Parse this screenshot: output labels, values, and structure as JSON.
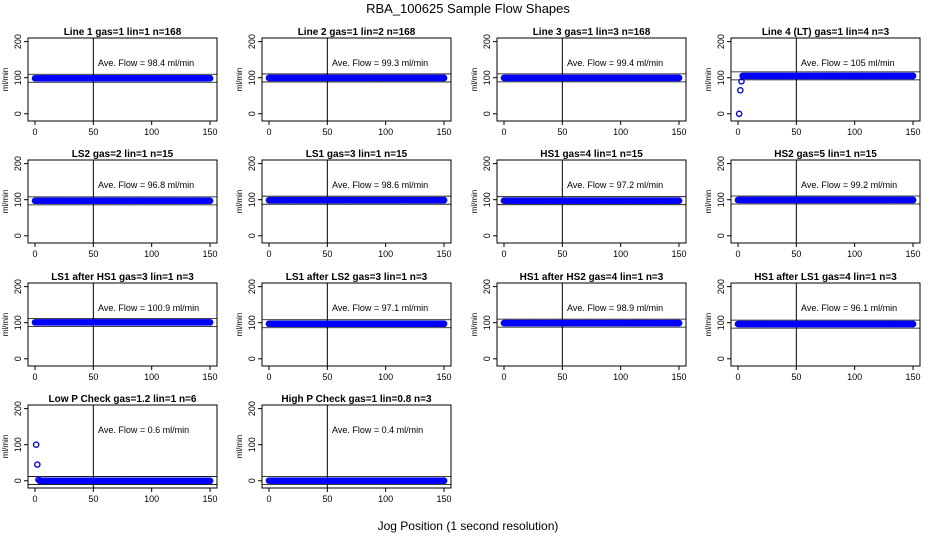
{
  "title": "RBA_100625  Sample Flow Shapes",
  "xlabel": "Jog Position (1 second resolution)",
  "ylabel": "ml/min",
  "x_ticks": [
    "0",
    "50",
    "100",
    "150"
  ],
  "y_ticks": [
    "0",
    "100",
    "200"
  ],
  "point_color": "#0000ff",
  "chart_data": [
    {
      "type": "scatter",
      "title": "Line 1 gas=1 lin=1 n=168",
      "annotation": "Ave. Flow =  98.4  ml/min",
      "hline": 98.4,
      "vline": 50,
      "xlim": [
        0,
        150
      ],
      "ylim": [
        -20,
        210
      ],
      "x": [
        0,
        1,
        2,
        150
      ],
      "y": [
        98.4,
        98.4,
        98.4,
        98.4
      ]
    },
    {
      "type": "scatter",
      "title": "Line 2 gas=1 lin=2 n=168",
      "annotation": "Ave. Flow =  99.3  ml/min",
      "hline": 99.3,
      "vline": 50,
      "xlim": [
        0,
        150
      ],
      "ylim": [
        -20,
        210
      ],
      "x": [
        0,
        1,
        2,
        150
      ],
      "y": [
        99.3,
        99.3,
        99.3,
        99.3
      ]
    },
    {
      "type": "scatter",
      "title": "Line 3 gas=1 lin=3 n=168",
      "annotation": "Ave. Flow =  99.4  ml/min",
      "hline": 99.4,
      "vline": 50,
      "xlim": [
        0,
        150
      ],
      "ylim": [
        -20,
        210
      ],
      "x": [
        0,
        1,
        2,
        150
      ],
      "y": [
        99.4,
        99.4,
        99.4,
        99.4
      ]
    },
    {
      "type": "scatter",
      "title": "Line 4 (LT) gas=1 lin=4 n=3",
      "annotation": "Ave. Flow =  105  ml/min",
      "hline": 105,
      "vline": 50,
      "xlim": [
        0,
        150
      ],
      "ylim": [
        -20,
        210
      ],
      "x": [
        1,
        2,
        3,
        4,
        150
      ],
      "y": [
        0,
        65,
        90,
        105,
        105
      ]
    },
    {
      "type": "scatter",
      "title": "LS2 gas=2 lin=1 n=15",
      "annotation": "Ave. Flow =  96.8  ml/min",
      "hline": 96.8,
      "vline": 50,
      "xlim": [
        0,
        150
      ],
      "ylim": [
        -20,
        210
      ],
      "x": [
        0,
        1,
        2,
        150
      ],
      "y": [
        96.8,
        96.8,
        96.8,
        96.8
      ]
    },
    {
      "type": "scatter",
      "title": "LS1 gas=3 lin=1 n=15",
      "annotation": "Ave. Flow =  98.6  ml/min",
      "hline": 98.6,
      "vline": 50,
      "xlim": [
        0,
        150
      ],
      "ylim": [
        -20,
        210
      ],
      "x": [
        0,
        1,
        2,
        150
      ],
      "y": [
        98.6,
        98.6,
        98.6,
        98.6
      ]
    },
    {
      "type": "scatter",
      "title": "HS1 gas=4 lin=1 n=15",
      "annotation": "Ave. Flow =  97.2  ml/min",
      "hline": 97.2,
      "vline": 50,
      "xlim": [
        0,
        150
      ],
      "ylim": [
        -20,
        210
      ],
      "x": [
        0,
        1,
        2,
        150
      ],
      "y": [
        97.2,
        97.2,
        97.2,
        97.2
      ]
    },
    {
      "type": "scatter",
      "title": "HS2 gas=5 lin=1 n=15",
      "annotation": "Ave. Flow =  99.2  ml/min",
      "hline": 99.2,
      "vline": 50,
      "xlim": [
        0,
        150
      ],
      "ylim": [
        -20,
        210
      ],
      "x": [
        0,
        1,
        2,
        150
      ],
      "y": [
        99.2,
        99.2,
        99.2,
        99.2
      ]
    },
    {
      "type": "scatter",
      "title": "LS1 after HS1 gas=3 lin=1 n=3",
      "annotation": "Ave. Flow =  100.9  ml/min",
      "hline": 100.9,
      "vline": 50,
      "xlim": [
        0,
        150
      ],
      "ylim": [
        -20,
        210
      ],
      "x": [
        0,
        1,
        2,
        150
      ],
      "y": [
        100.9,
        100.9,
        100.9,
        100.9
      ]
    },
    {
      "type": "scatter",
      "title": "LS1 after LS2 gas=3 lin=1 n=3",
      "annotation": "Ave. Flow =  97.1  ml/min",
      "hline": 97.1,
      "vline": 50,
      "xlim": [
        0,
        150
      ],
      "ylim": [
        -20,
        210
      ],
      "x": [
        0,
        1,
        2,
        150
      ],
      "y": [
        97.1,
        97.1,
        97.1,
        97.1
      ]
    },
    {
      "type": "scatter",
      "title": "HS1 after HS2 gas=4 lin=1 n=3",
      "annotation": "Ave. Flow =  98.9  ml/min",
      "hline": 98.9,
      "vline": 50,
      "xlim": [
        0,
        150
      ],
      "ylim": [
        -20,
        210
      ],
      "x": [
        0,
        1,
        2,
        150
      ],
      "y": [
        98.9,
        98.9,
        98.9,
        98.9
      ]
    },
    {
      "type": "scatter",
      "title": "HS1 after LS1 gas=4 lin=1 n=3",
      "annotation": "Ave. Flow =  96.1  ml/min",
      "hline": 96.1,
      "vline": 50,
      "xlim": [
        0,
        150
      ],
      "ylim": [
        -20,
        210
      ],
      "x": [
        0,
        1,
        2,
        150
      ],
      "y": [
        96.1,
        96.1,
        96.1,
        96.1
      ]
    },
    {
      "type": "scatter",
      "title": "Low P Check gas=1.2 lin=1 n=6",
      "annotation": "Ave. Flow =  0.6  ml/min",
      "hline": 0.6,
      "vline": 50,
      "xlim": [
        0,
        150
      ],
      "ylim": [
        -20,
        210
      ],
      "x": [
        1,
        2,
        3,
        4,
        150
      ],
      "y": [
        100,
        45,
        3,
        0,
        0
      ]
    },
    {
      "type": "scatter",
      "title": "High P Check gas=1 lin=0.8 n=3",
      "annotation": "Ave. Flow =  0.4  ml/min",
      "hline": 0.4,
      "vline": 50,
      "xlim": [
        0,
        150
      ],
      "ylim": [
        -20,
        210
      ],
      "x": [
        0,
        1,
        2,
        150
      ],
      "y": [
        0.4,
        0.4,
        0.4,
        0.4
      ]
    }
  ]
}
